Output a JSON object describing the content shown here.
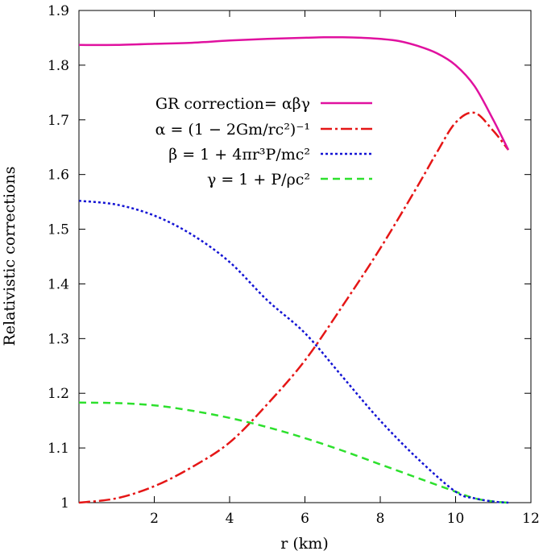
{
  "chart_data": {
    "type": "line",
    "xlabel": "r (km)",
    "ylabel": "Relativistic corrections",
    "xlim": [
      0,
      12
    ],
    "ylim": [
      1,
      1.9
    ],
    "xticks": [
      "2",
      "4",
      "6",
      "8",
      "10",
      "12"
    ],
    "yticks": [
      "1",
      "1.1",
      "1.2",
      "1.3",
      "1.4",
      "1.5",
      "1.6",
      "1.7",
      "1.8",
      "1.9"
    ],
    "grid": false,
    "legend_position": "top-center",
    "series": [
      {
        "name": "GR correction= αβγ",
        "color": "#e0119f",
        "dash": "solid",
        "x": [
          0,
          1,
          2,
          3,
          4,
          5,
          6,
          6.5,
          7,
          7.5,
          8,
          8.5,
          9,
          9.5,
          10,
          10.5,
          11,
          11.4
        ],
        "y": [
          1.837,
          1.837,
          1.839,
          1.841,
          1.845,
          1.848,
          1.85,
          1.851,
          1.851,
          1.85,
          1.848,
          1.844,
          1.835,
          1.822,
          1.8,
          1.762,
          1.7,
          1.645
        ]
      },
      {
        "name": "α = (1 − 2Gm/rc²)⁻¹",
        "color": "#e51616",
        "dash": "dashdot",
        "x": [
          0,
          1,
          2,
          3,
          4,
          5,
          6,
          7,
          8,
          9,
          9.5,
          10,
          10.5,
          11,
          11.4
        ],
        "y": [
          1.0,
          1.008,
          1.03,
          1.065,
          1.11,
          1.18,
          1.26,
          1.36,
          1.465,
          1.58,
          1.64,
          1.695,
          1.713,
          1.68,
          1.645
        ]
      },
      {
        "name": "β = 1 + 4πr³P/mc²",
        "color": "#1414d4",
        "dash": "dotted",
        "x": [
          0,
          1,
          2,
          3,
          4,
          5,
          6,
          7,
          8,
          9,
          10,
          10.5,
          11,
          11.4
        ],
        "y": [
          1.552,
          1.545,
          1.525,
          1.49,
          1.44,
          1.37,
          1.31,
          1.23,
          1.15,
          1.08,
          1.02,
          1.008,
          1.002,
          1.0
        ]
      },
      {
        "name": "γ = 1 + P/ρc²",
        "color": "#2de02d",
        "dash": "dashed",
        "x": [
          0,
          1,
          2,
          3,
          4,
          5,
          6,
          7,
          8,
          9,
          10,
          10.5,
          11,
          11.4
        ],
        "y": [
          1.183,
          1.182,
          1.178,
          1.168,
          1.155,
          1.138,
          1.118,
          1.095,
          1.07,
          1.045,
          1.02,
          1.008,
          1.002,
          1.0
        ]
      }
    ]
  }
}
